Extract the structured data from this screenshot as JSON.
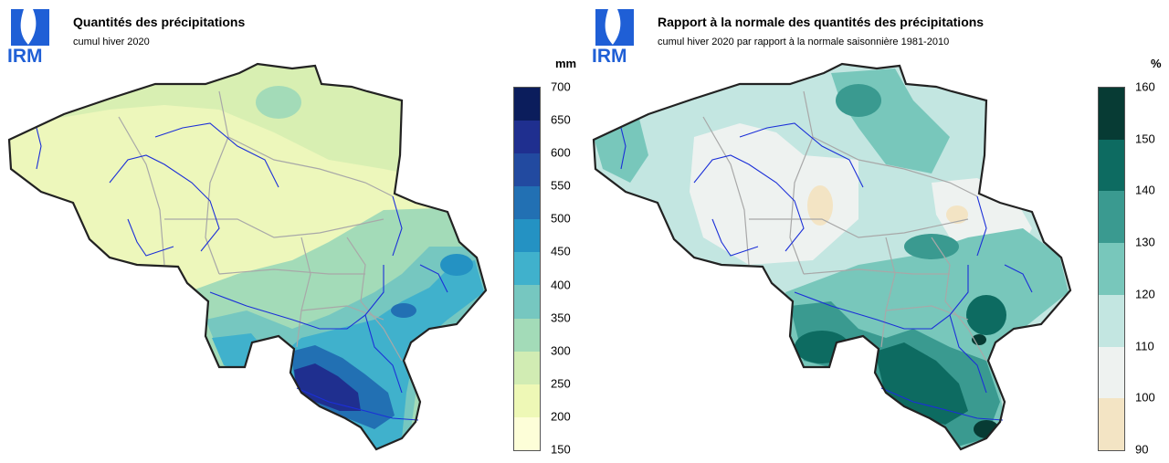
{
  "panels": [
    {
      "logo_text": "IRM",
      "title": "Quantités des précipitations",
      "subtitle": "cumul hiver 2020",
      "legend": {
        "unit": "mm",
        "labels": [
          "700",
          "650",
          "600",
          "550",
          "500",
          "450",
          "400",
          "350",
          "300",
          "250",
          "200",
          "150"
        ],
        "colors": [
          "#0b1d5c",
          "#1f2f8f",
          "#224aa0",
          "#2270b3",
          "#2492c3",
          "#40b1cc",
          "#76c7c0",
          "#a3dbb8",
          "#d1ecb3",
          "#eef8b6",
          "#fdfed8"
        ]
      },
      "regions": {
        "base": "#edf7bb",
        "north_strip": "#d8efb2",
        "south_east": "#a3dbb8",
        "ardennes_mid": "#76c7c0",
        "ardennes_high": "#40b1cc",
        "ardennes_core": "#2270b3",
        "ardennes_peak": "#1f2f8f"
      }
    },
    {
      "logo_text": "IRM",
      "title": "Rapport à la normale des quantités des précipitations",
      "subtitle": "cumul hiver 2020 par rapport à la normale saisonnière 1981-2010",
      "legend": {
        "unit": "%",
        "labels": [
          "160",
          "150",
          "140",
          "130",
          "120",
          "110",
          "100",
          "90"
        ],
        "colors": [
          "#073b34",
          "#0d6b61",
          "#3a9a90",
          "#78c7bb",
          "#c3e6e1",
          "#eef2f0",
          "#f3e4c4"
        ]
      },
      "regions": {
        "base": "#c3e6e1",
        "near_normal": "#eef2f0",
        "below_normal": "#f3e4c4",
        "moderate": "#78c7bb",
        "high": "#3a9a90",
        "very_high": "#0d6b61",
        "extreme": "#073b34"
      }
    }
  ]
}
